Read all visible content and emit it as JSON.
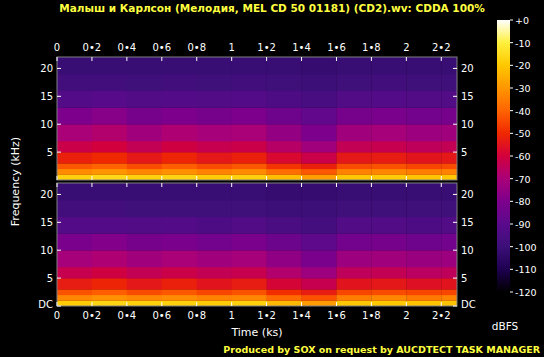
{
  "chart_data": {
    "type": "heatmap",
    "title": "Малыш и Карлсон (Мелодия, MEL CD 50 01181) (CD2).wv: CDDA 100%",
    "x_label": "Time (ks)",
    "y_label": "Frequency (kHz)",
    "annotations": [
      "Produced by SOX on request by AUCDTECT TASK MANAGER"
    ],
    "xlim": [
      0,
      2.29
    ],
    "xticks": [
      0,
      {
        "value": 0.2,
        "label": "0•2"
      },
      {
        "value": 0.4,
        "label": "0•4"
      },
      {
        "value": 0.6,
        "label": "0•6"
      },
      {
        "value": 0.8,
        "label": "0•8"
      },
      1,
      {
        "value": 1.2,
        "label": "1•2"
      },
      {
        "value": 1.4,
        "label": "1•4"
      },
      {
        "value": 1.6,
        "label": "1•6"
      },
      {
        "value": 1.8,
        "label": "1•8"
      },
      2,
      {
        "value": 2.2,
        "label": "2•2"
      }
    ],
    "ylim": [
      0,
      22.05
    ],
    "x_bins": [
      0,
      0.2,
      0.4,
      0.6,
      0.8,
      1,
      1.2,
      1.4,
      1.6,
      1.8,
      2,
      2.2,
      2.29
    ],
    "y_bins": [
      0,
      1,
      2,
      3,
      5,
      7,
      10,
      13,
      16,
      19,
      22.05
    ],
    "series": [
      {
        "yticks": [
          5,
          10,
          15,
          20
        ],
        "cells": [
          [
            -18,
            -16,
            -18,
            -17,
            -19,
            -18,
            -22,
            -28,
            -20,
            -19,
            -21,
            -20
          ],
          [
            -32,
            -30,
            -33,
            -31,
            -34,
            -32,
            -38,
            -42,
            -34,
            -33,
            -35,
            -34
          ],
          [
            -42,
            -40,
            -44,
            -41,
            -44,
            -42,
            -48,
            -52,
            -44,
            -43,
            -45,
            -44
          ],
          [
            -52,
            -50,
            -54,
            -51,
            -54,
            -52,
            -58,
            -62,
            -54,
            -53,
            -55,
            -54
          ],
          [
            -62,
            -60,
            -64,
            -61,
            -63,
            -62,
            -67,
            -72,
            -64,
            -63,
            -65,
            -64
          ],
          [
            -70,
            -68,
            -72,
            -69,
            -71,
            -70,
            -75,
            -80,
            -72,
            -71,
            -73,
            -72
          ],
          [
            -80,
            -78,
            -82,
            -80,
            -82,
            -80,
            -84,
            -88,
            -82,
            -81,
            -83,
            -82
          ],
          [
            -92,
            -91,
            -93,
            -92,
            -93,
            -92,
            -94,
            -96,
            -93,
            -92,
            -93,
            -93
          ],
          [
            -98,
            -98,
            -99,
            -98,
            -99,
            -98,
            -99,
            -100,
            -99,
            -98,
            -99,
            -99
          ],
          [
            -101,
            -101,
            -101,
            -101,
            -101,
            -101,
            -101,
            -102,
            -101,
            -101,
            -101,
            -101
          ]
        ]
      },
      {
        "yticks": [
          {
            "value": 0,
            "label": "DC"
          },
          5,
          10,
          15,
          20
        ],
        "cells": [
          [
            -19,
            -17,
            -18,
            -18,
            -19,
            -18,
            -23,
            -29,
            -20,
            -20,
            -21,
            -21
          ],
          [
            -33,
            -31,
            -33,
            -32,
            -34,
            -33,
            -39,
            -43,
            -35,
            -33,
            -36,
            -34
          ],
          [
            -43,
            -41,
            -44,
            -42,
            -45,
            -43,
            -49,
            -53,
            -45,
            -44,
            -45,
            -45
          ],
          [
            -53,
            -51,
            -54,
            -52,
            -55,
            -53,
            -59,
            -63,
            -55,
            -54,
            -56,
            -55
          ],
          [
            -63,
            -61,
            -64,
            -62,
            -64,
            -63,
            -68,
            -73,
            -65,
            -64,
            -66,
            -65
          ],
          [
            -71,
            -69,
            -72,
            -70,
            -72,
            -71,
            -76,
            -81,
            -73,
            -72,
            -74,
            -73
          ],
          [
            -81,
            -79,
            -82,
            -81,
            -83,
            -81,
            -85,
            -89,
            -83,
            -82,
            -84,
            -83
          ],
          [
            -92,
            -92,
            -93,
            -92,
            -94,
            -93,
            -95,
            -97,
            -93,
            -93,
            -94,
            -93
          ],
          [
            -98,
            -98,
            -99,
            -99,
            -99,
            -99,
            -100,
            -100,
            -99,
            -99,
            -99,
            -99
          ],
          [
            -101,
            -101,
            -101,
            -101,
            -101,
            -101,
            -102,
            -102,
            -101,
            -101,
            -101,
            -101
          ]
        ]
      }
    ],
    "colorbar": {
      "range": [
        -120,
        0
      ],
      "label": "dBFS",
      "ticks": [
        {
          "value": 0,
          "label": "+0"
        },
        -10,
        -20,
        -30,
        -40,
        -50,
        -60,
        -70,
        -80,
        -90,
        -100,
        -110,
        -120
      ]
    }
  }
}
